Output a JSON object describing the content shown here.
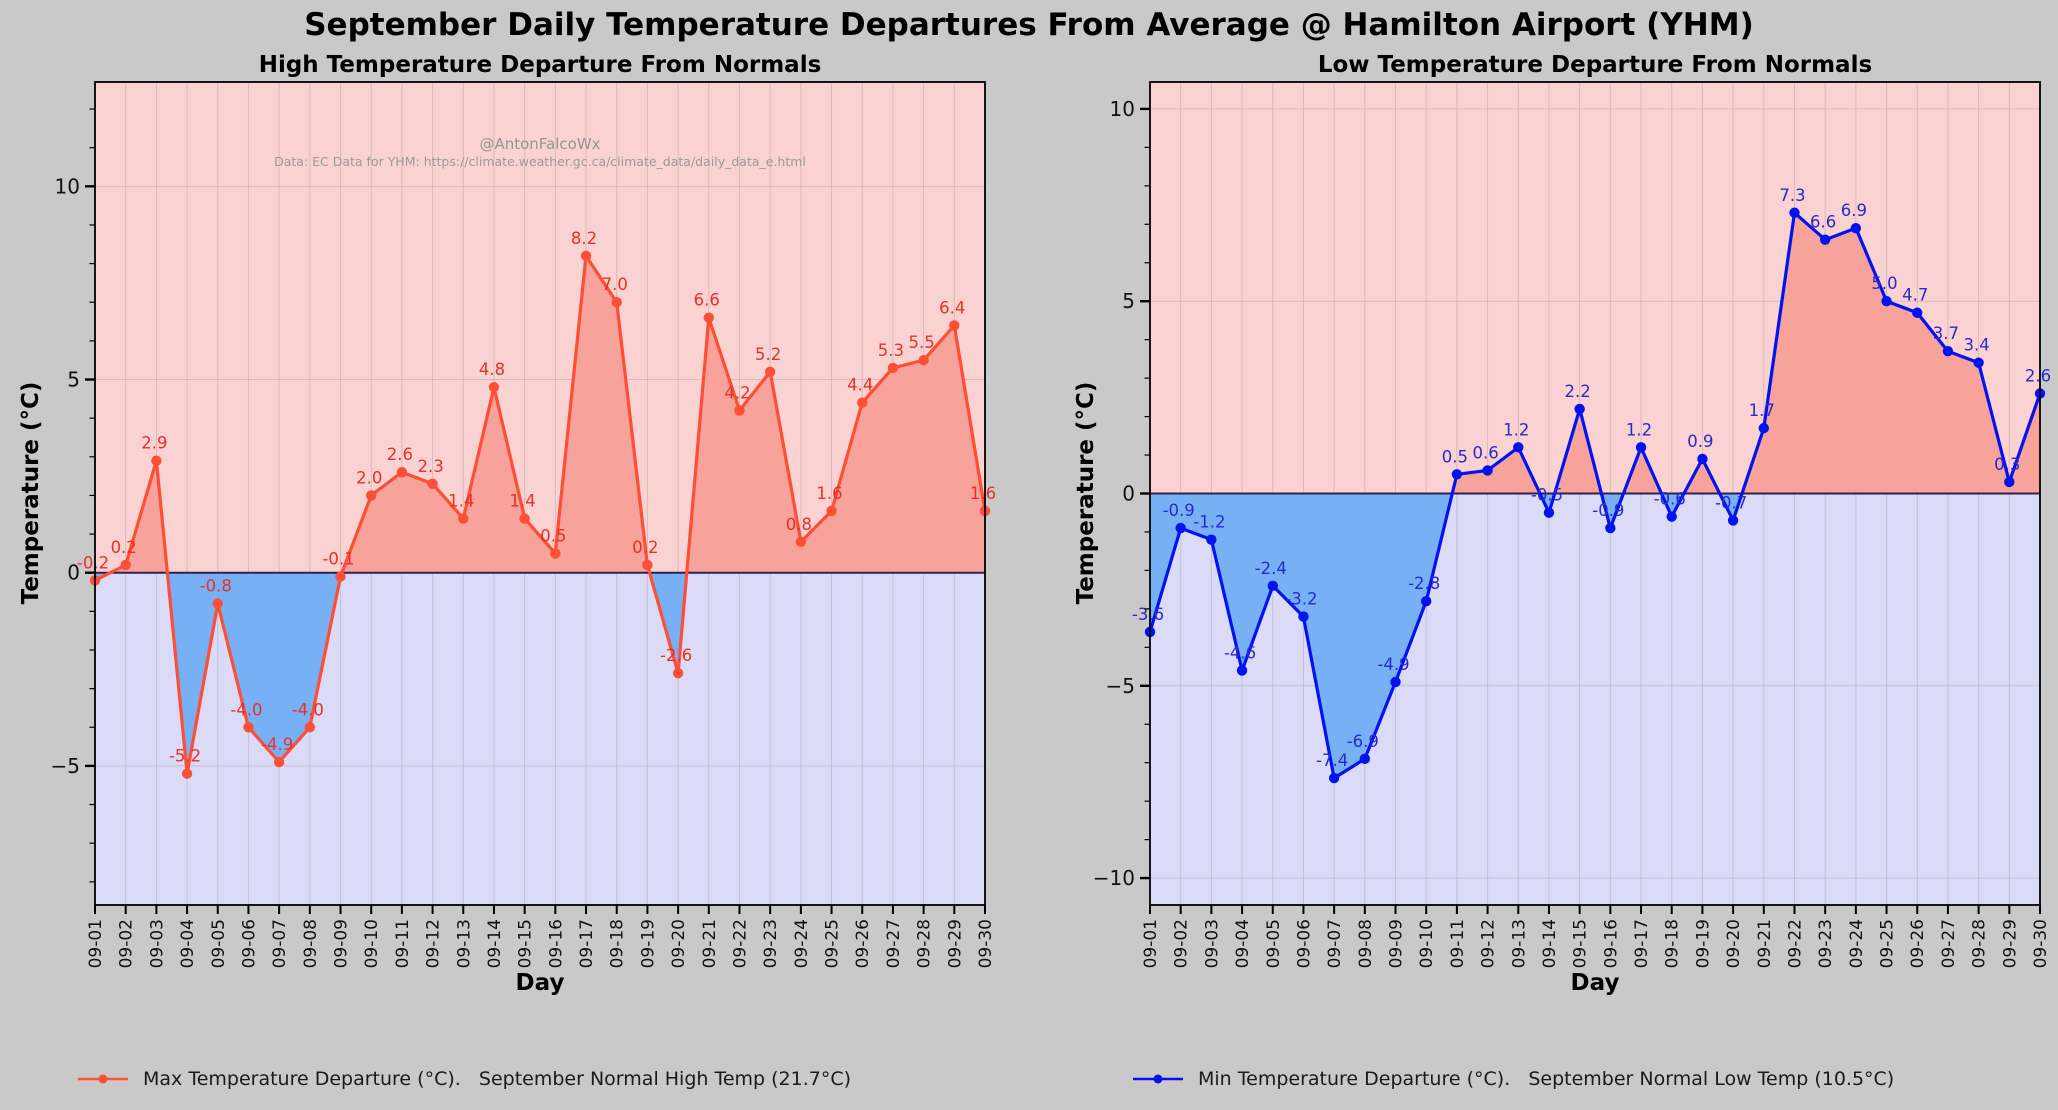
{
  "page": {
    "title": "September Daily Temperature Departures From Average @ Hamilton Airport (YHM)",
    "background": "#c9c9c9"
  },
  "watermark": {
    "handle": "@AntonFalcoWx",
    "source": "Data: EC Data for YHM: https://climate.weather.gc.ca/climate_data/daily_data_e.html"
  },
  "chart_data": [
    {
      "type": "line",
      "title": "High Temperature Departure From Normals",
      "xlabel": "Day",
      "ylabel": "Temperature (°C)",
      "categories": [
        "09-01",
        "09-02",
        "09-03",
        "09-04",
        "09-05",
        "09-06",
        "09-07",
        "09-08",
        "09-09",
        "09-10",
        "09-11",
        "09-12",
        "09-13",
        "09-14",
        "09-15",
        "09-16",
        "09-17",
        "09-18",
        "09-19",
        "09-20",
        "09-21",
        "09-22",
        "09-23",
        "09-24",
        "09-25",
        "09-26",
        "09-27",
        "09-28",
        "09-29",
        "09-30"
      ],
      "series": [
        {
          "name": "Max Temperature Departure (°C)",
          "values": [
            -0.2,
            0.2,
            2.9,
            -5.2,
            -0.8,
            -4.0,
            -4.9,
            -4.0,
            -0.1,
            2.0,
            2.6,
            2.3,
            1.4,
            4.8,
            1.4,
            0.5,
            8.2,
            7.0,
            0.2,
            -2.6,
            6.6,
            4.2,
            5.2,
            0.8,
            1.6,
            4.4,
            5.3,
            5.5,
            6.4,
            1.6
          ]
        }
      ],
      "ylim": [
        -8.6,
        12.7
      ],
      "yticks": [
        -5,
        0,
        5,
        10
      ],
      "grid": true,
      "legend": "Max Temperature Departure (°C).   September Normal High Temp (21.7°C)",
      "colors": {
        "line": "#fc4f36",
        "label": "#e93026",
        "area_pos": "#f7a29b",
        "area_neg": "#78b0f6",
        "band_pos": "#fad2d1",
        "band_neg": "#dbdaf7",
        "zero_line": "#2c2250"
      }
    },
    {
      "type": "line",
      "title": "Low Temperature Departure From Normals",
      "xlabel": "Day",
      "ylabel": "Temperature (°C)",
      "categories": [
        "09-01",
        "09-02",
        "09-03",
        "09-04",
        "09-05",
        "09-06",
        "09-07",
        "09-08",
        "09-09",
        "09-10",
        "09-11",
        "09-12",
        "09-13",
        "09-14",
        "09-15",
        "09-16",
        "09-17",
        "09-18",
        "09-19",
        "09-20",
        "09-21",
        "09-22",
        "09-23",
        "09-24",
        "09-25",
        "09-26",
        "09-27",
        "09-28",
        "09-29",
        "09-30"
      ],
      "series": [
        {
          "name": "Min Temperature Departure (°C)",
          "values": [
            -3.6,
            -0.9,
            -1.2,
            -4.6,
            -2.4,
            -3.2,
            -7.4,
            -6.9,
            -4.9,
            -2.8,
            0.5,
            0.6,
            1.2,
            -0.5,
            2.2,
            -0.9,
            1.2,
            -0.6,
            0.9,
            -0.7,
            1.7,
            7.3,
            6.6,
            6.9,
            5.0,
            4.7,
            3.7,
            3.4,
            0.3,
            2.6
          ]
        }
      ],
      "ylim": [
        -10.7,
        10.7
      ],
      "yticks": [
        -10,
        -5,
        0,
        5,
        10
      ],
      "grid": true,
      "legend": "Min Temperature Departure (°C).   September Normal Low Temp (10.5°C)",
      "colors": {
        "line": "#0213ef",
        "label": "#2929cf",
        "area_pos": "#f7a29b",
        "area_neg": "#78b0f6",
        "band_pos": "#fad2d1",
        "band_neg": "#dbdaf7",
        "zero_line": "#2c2250"
      }
    }
  ]
}
